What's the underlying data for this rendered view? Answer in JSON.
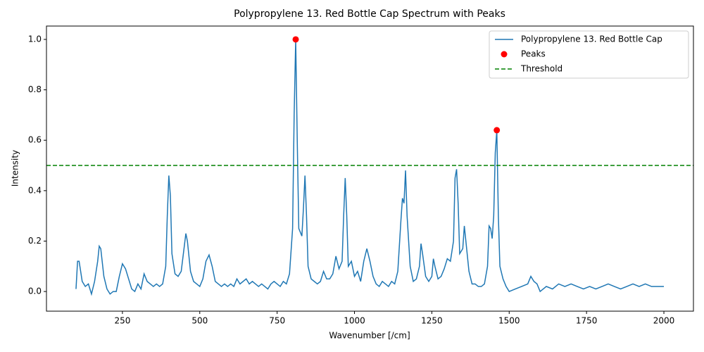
{
  "chart_data": {
    "type": "line",
    "title": "Polypropylene 13. Red Bottle Cap Spectrum with Peaks",
    "xlabel": "Wavenumber [/cm]",
    "ylabel": "Intensity",
    "x": [
      100,
      105,
      110,
      120,
      130,
      140,
      150,
      160,
      170,
      175,
      180,
      190,
      200,
      210,
      220,
      230,
      240,
      250,
      260,
      270,
      280,
      290,
      300,
      310,
      320,
      330,
      340,
      350,
      360,
      370,
      380,
      390,
      395,
      400,
      405,
      410,
      420,
      430,
      440,
      450,
      455,
      460,
      470,
      480,
      490,
      500,
      510,
      520,
      530,
      540,
      550,
      560,
      570,
      580,
      590,
      600,
      610,
      620,
      630,
      640,
      650,
      660,
      670,
      680,
      690,
      700,
      710,
      720,
      730,
      740,
      750,
      760,
      770,
      780,
      790,
      800,
      805,
      810,
      815,
      820,
      830,
      835,
      840,
      845,
      850,
      860,
      870,
      880,
      890,
      900,
      910,
      920,
      930,
      940,
      950,
      960,
      965,
      970,
      975,
      980,
      990,
      1000,
      1010,
      1020,
      1030,
      1040,
      1050,
      1060,
      1070,
      1080,
      1090,
      1100,
      1110,
      1120,
      1130,
      1140,
      1150,
      1155,
      1160,
      1165,
      1170,
      1180,
      1190,
      1200,
      1210,
      1215,
      1220,
      1230,
      1240,
      1250,
      1255,
      1260,
      1270,
      1280,
      1290,
      1300,
      1310,
      1320,
      1325,
      1330,
      1335,
      1340,
      1350,
      1355,
      1360,
      1370,
      1380,
      1390,
      1400,
      1410,
      1420,
      1430,
      1435,
      1440,
      1445,
      1450,
      1455,
      1460,
      1465,
      1470,
      1480,
      1490,
      1500,
      1520,
      1540,
      1560,
      1570,
      1580,
      1590,
      1600,
      1620,
      1640,
      1660,
      1680,
      1700,
      1720,
      1740,
      1760,
      1780,
      1800,
      1820,
      1840,
      1860,
      1880,
      1900,
      1920,
      1940,
      1960,
      1980,
      2000
    ],
    "series": [
      {
        "name": "Polypropylene 13. Red Bottle Cap",
        "color": "#1f77b4",
        "values": [
          0.01,
          0.12,
          0.12,
          0.04,
          0.02,
          0.03,
          -0.01,
          0.04,
          0.12,
          0.18,
          0.17,
          0.06,
          0.01,
          -0.01,
          0.0,
          0.0,
          0.06,
          0.11,
          0.09,
          0.05,
          0.01,
          0.0,
          0.03,
          0.01,
          0.07,
          0.04,
          0.03,
          0.02,
          0.03,
          0.02,
          0.03,
          0.1,
          0.3,
          0.46,
          0.38,
          0.15,
          0.07,
          0.06,
          0.08,
          0.18,
          0.23,
          0.2,
          0.08,
          0.04,
          0.03,
          0.02,
          0.05,
          0.12,
          0.145,
          0.1,
          0.04,
          0.03,
          0.02,
          0.03,
          0.02,
          0.03,
          0.02,
          0.05,
          0.03,
          0.04,
          0.05,
          0.03,
          0.04,
          0.03,
          0.02,
          0.03,
          0.02,
          0.01,
          0.03,
          0.04,
          0.03,
          0.02,
          0.04,
          0.03,
          0.07,
          0.25,
          0.7,
          1.0,
          0.6,
          0.25,
          0.22,
          0.33,
          0.46,
          0.3,
          0.1,
          0.05,
          0.04,
          0.03,
          0.04,
          0.08,
          0.05,
          0.05,
          0.07,
          0.14,
          0.09,
          0.12,
          0.3,
          0.45,
          0.3,
          0.1,
          0.12,
          0.06,
          0.08,
          0.04,
          0.12,
          0.17,
          0.12,
          0.06,
          0.03,
          0.02,
          0.04,
          0.03,
          0.02,
          0.04,
          0.03,
          0.08,
          0.28,
          0.37,
          0.35,
          0.48,
          0.3,
          0.1,
          0.04,
          0.05,
          0.1,
          0.19,
          0.15,
          0.06,
          0.04,
          0.06,
          0.13,
          0.1,
          0.05,
          0.06,
          0.09,
          0.13,
          0.12,
          0.2,
          0.45,
          0.485,
          0.35,
          0.15,
          0.17,
          0.26,
          0.2,
          0.08,
          0.03,
          0.03,
          0.02,
          0.02,
          0.03,
          0.1,
          0.26,
          0.25,
          0.21,
          0.3,
          0.55,
          0.64,
          0.3,
          0.1,
          0.05,
          0.02,
          0.0,
          0.01,
          0.02,
          0.03,
          0.06,
          0.04,
          0.03,
          0.0,
          0.02,
          0.01,
          0.03,
          0.02,
          0.03,
          0.02,
          0.01,
          0.02,
          0.01,
          0.02,
          0.03,
          0.02,
          0.01,
          0.02,
          0.03,
          0.02,
          0.03,
          0.02,
          0.02,
          0.02
        ]
      }
    ],
    "peaks": {
      "name": "Peaks",
      "color": "#ff0000",
      "x": [
        810,
        1460
      ],
      "values": [
        1.0,
        0.64
      ]
    },
    "threshold": {
      "name": "Threshold",
      "color": "#008000",
      "value": 0.5
    },
    "xlim": [
      4.5,
      2095.5
    ],
    "ylim": [
      -0.078,
      1.053
    ],
    "xticks": [
      250,
      500,
      750,
      1000,
      1250,
      1500,
      1750,
      2000
    ],
    "yticks": [
      {
        "value": 0,
        "label": "0.0"
      },
      0.2,
      0.4,
      0.6,
      0.8,
      {
        "value": 1,
        "label": "1.0"
      }
    ],
    "legend": "upper right"
  }
}
